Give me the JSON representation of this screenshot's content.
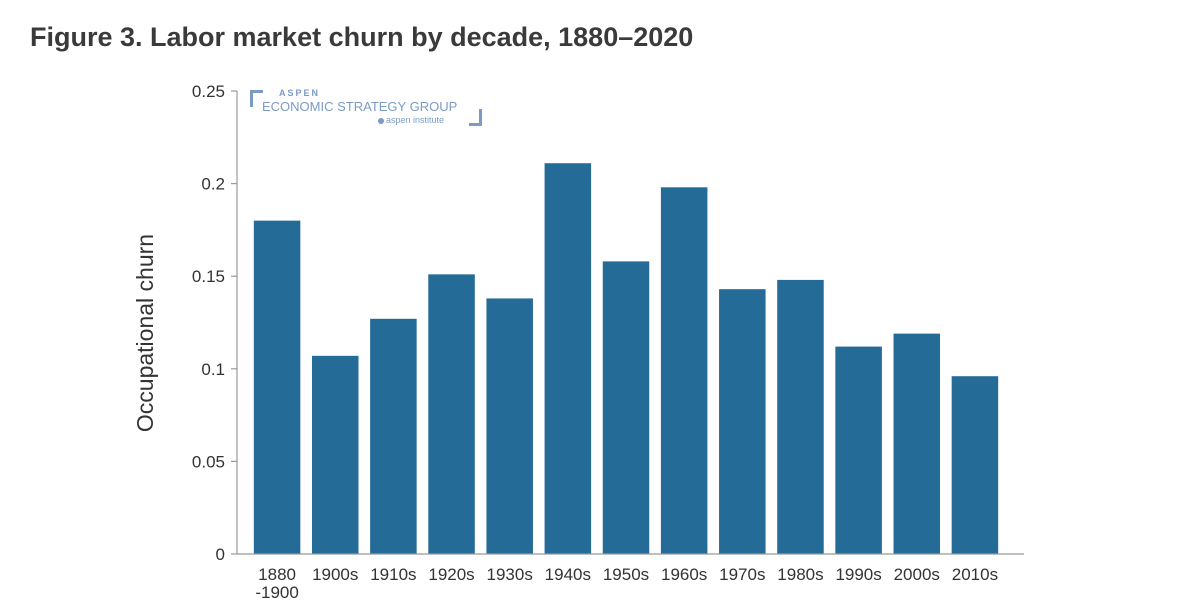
{
  "page": {
    "title": "Figure 3. Labor market churn by decade, 1880–2020"
  },
  "logo": {
    "line1": "ASPEN",
    "line2": "ECONOMIC STRATEGY GROUP",
    "line3": "aspen institute"
  },
  "chart_data": {
    "type": "bar",
    "title": "Figure 3. Labor market churn by decade, 1880–2020",
    "ylabel": "Occupational churn",
    "xlabel": "",
    "ylim": [
      0,
      0.25
    ],
    "yticks": [
      0,
      0.05,
      0.1,
      0.15,
      0.2,
      0.25
    ],
    "ytick_labels": [
      "0",
      "0.05",
      "0.1",
      "0.15",
      "0.2",
      "0.25"
    ],
    "categories": [
      [
        "1880",
        "-1900"
      ],
      [
        "1900s"
      ],
      [
        "1910s"
      ],
      [
        "1920s"
      ],
      [
        "1930s"
      ],
      [
        "1940s"
      ],
      [
        "1950s"
      ],
      [
        "1960s"
      ],
      [
        "1970s"
      ],
      [
        "1980s"
      ],
      [
        "1990s"
      ],
      [
        "2000s"
      ],
      [
        "2010s"
      ]
    ],
    "values": [
      0.18,
      0.107,
      0.127,
      0.151,
      0.138,
      0.211,
      0.158,
      0.198,
      0.143,
      0.148,
      0.112,
      0.119,
      0.096
    ],
    "grid": false,
    "bar_color": "#256b98"
  }
}
